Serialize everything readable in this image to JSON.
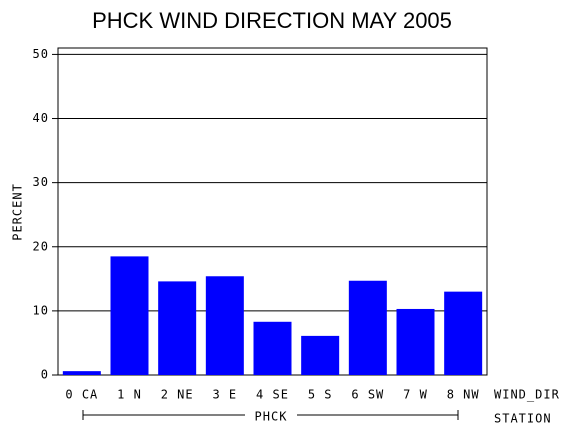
{
  "chart_data": {
    "type": "bar",
    "title": "PHCK WIND DIRECTION MAY 2005",
    "categories": [
      "0 CA",
      "1 N",
      "2 NE",
      "3 E",
      "4 SE",
      "5 S",
      "6 SW",
      "7 W",
      "8 NW"
    ],
    "values": [
      0.6,
      18.5,
      14.6,
      15.4,
      8.3,
      6.1,
      14.7,
      10.3,
      13.0
    ],
    "color": "#0000ff",
    "ylim": [
      0,
      51
    ],
    "yticks": [
      0,
      10,
      20,
      30,
      40,
      50
    ],
    "grid": true,
    "y_label": "PERCENT",
    "x_label": "WIND_DIR",
    "group_label": "PHCK",
    "group_axis_label": "STATION"
  }
}
